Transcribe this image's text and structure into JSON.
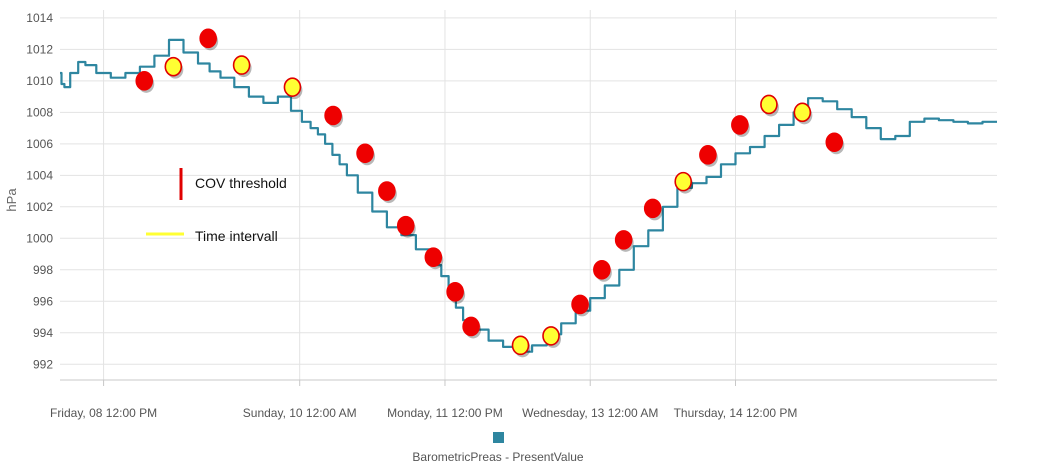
{
  "chart_data": {
    "type": "line",
    "ylabel": "hPa",
    "xlabel": "",
    "ylim": [
      991,
      1014.5
    ],
    "yticks": [
      992,
      994,
      996,
      998,
      1000,
      1002,
      1004,
      1006,
      1008,
      1010,
      1012,
      1014
    ],
    "xlim": [
      -0.3,
      6.15
    ],
    "xtick_positions": [
      0,
      1.35,
      2.35,
      3.35,
      4.35
    ],
    "xtick_labels": [
      "Friday, 08 12:00 PM",
      "Sunday, 10 12:00 AM",
      "Monday, 11 12:00 PM",
      "Wednesday, 13 12:00 AM",
      "Thursday, 14 12:00 PM"
    ],
    "grid": true,
    "legend_position": "bottom-center",
    "series": [
      {
        "name": "BarometricPreas - PresentValue",
        "color": "#2e86a0",
        "x": [
          -0.3,
          -0.28,
          -0.26,
          -0.2,
          -0.15,
          -0.1,
          0,
          0.1,
          0.2,
          0.3,
          0.4,
          0.5,
          0.6,
          0.7,
          0.76,
          0.85,
          0.95,
          1.05,
          1.15,
          1.25,
          1.33,
          1.4,
          1.45,
          1.5,
          1.55,
          1.6,
          1.65,
          1.7,
          1.8,
          1.9,
          2.0,
          2.1,
          2.2,
          2.3,
          2.35,
          2.4,
          2.45,
          2.5,
          2.6,
          2.7,
          2.8,
          2.9,
          3.0,
          3.1,
          3.2,
          3.3,
          3.4,
          3.5,
          3.6,
          3.7,
          3.8,
          3.9,
          4.0,
          4.1,
          4.2,
          4.3,
          4.4,
          4.5,
          4.6,
          4.7,
          4.8,
          4.9,
          5.0,
          5.1,
          5.2,
          5.3,
          5.4,
          5.5,
          5.6,
          5.7,
          5.8,
          5.9,
          6.0,
          6.1,
          6.15
        ],
        "y": [
          1010.5,
          1009.8,
          1009.6,
          1010.5,
          1011.2,
          1011.0,
          1010.5,
          1010.2,
          1010.5,
          1010.9,
          1011.6,
          1012.6,
          1011.8,
          1011.1,
          1010.6,
          1010.2,
          1009.6,
          1009.0,
          1008.6,
          1009.0,
          1008.1,
          1007.4,
          1007.0,
          1006.6,
          1006.0,
          1005.3,
          1004.7,
          1004.0,
          1002.9,
          1001.7,
          1000.7,
          1000.2,
          999.3,
          998.3,
          997.6,
          996.6,
          995.6,
          994.8,
          994.2,
          993.5,
          993.1,
          992.8,
          993.2,
          993.9,
          994.6,
          995.4,
          996.2,
          997.0,
          998.0,
          999.5,
          1000.5,
          1002.0,
          1003.2,
          1003.5,
          1003.9,
          1004.7,
          1005.4,
          1005.8,
          1006.5,
          1007.2,
          1008.0,
          1008.9,
          1008.7,
          1008.2,
          1007.7,
          1007.0,
          1006.3,
          1006.5,
          1007.4,
          1007.6,
          1007.5,
          1007.4,
          1007.3,
          1007.4,
          1007.4
        ]
      }
    ],
    "markers": [
      {
        "x": 0.28,
        "y": 1010.0,
        "type": "cov"
      },
      {
        "x": 0.48,
        "y": 1010.9,
        "type": "time"
      },
      {
        "x": 0.72,
        "y": 1012.7,
        "type": "cov"
      },
      {
        "x": 0.95,
        "y": 1011.0,
        "type": "time"
      },
      {
        "x": 1.3,
        "y": 1009.6,
        "type": "time"
      },
      {
        "x": 1.58,
        "y": 1007.8,
        "type": "cov"
      },
      {
        "x": 1.8,
        "y": 1005.4,
        "type": "cov"
      },
      {
        "x": 1.95,
        "y": 1003.0,
        "type": "cov"
      },
      {
        "x": 2.08,
        "y": 1000.8,
        "type": "cov"
      },
      {
        "x": 2.27,
        "y": 998.8,
        "type": "cov"
      },
      {
        "x": 2.42,
        "y": 996.6,
        "type": "cov"
      },
      {
        "x": 2.53,
        "y": 994.4,
        "type": "cov"
      },
      {
        "x": 2.87,
        "y": 993.2,
        "type": "time"
      },
      {
        "x": 3.08,
        "y": 993.8,
        "type": "time"
      },
      {
        "x": 3.28,
        "y": 995.8,
        "type": "cov"
      },
      {
        "x": 3.43,
        "y": 998.0,
        "type": "cov"
      },
      {
        "x": 3.58,
        "y": 999.9,
        "type": "cov"
      },
      {
        "x": 3.78,
        "y": 1001.9,
        "type": "cov"
      },
      {
        "x": 3.99,
        "y": 1003.6,
        "type": "time"
      },
      {
        "x": 4.16,
        "y": 1005.3,
        "type": "cov"
      },
      {
        "x": 4.38,
        "y": 1007.2,
        "type": "cov"
      },
      {
        "x": 4.58,
        "y": 1008.5,
        "type": "time"
      },
      {
        "x": 4.81,
        "y": 1008.0,
        "type": "time"
      },
      {
        "x": 5.03,
        "y": 1006.1,
        "type": "cov"
      }
    ],
    "annotations": [
      {
        "label": "COV threshold",
        "color": "#e00000",
        "kind": "vertical-line"
      },
      {
        "label": "Time intervall",
        "color": "#ffff33",
        "kind": "horizontal-line"
      }
    ]
  }
}
